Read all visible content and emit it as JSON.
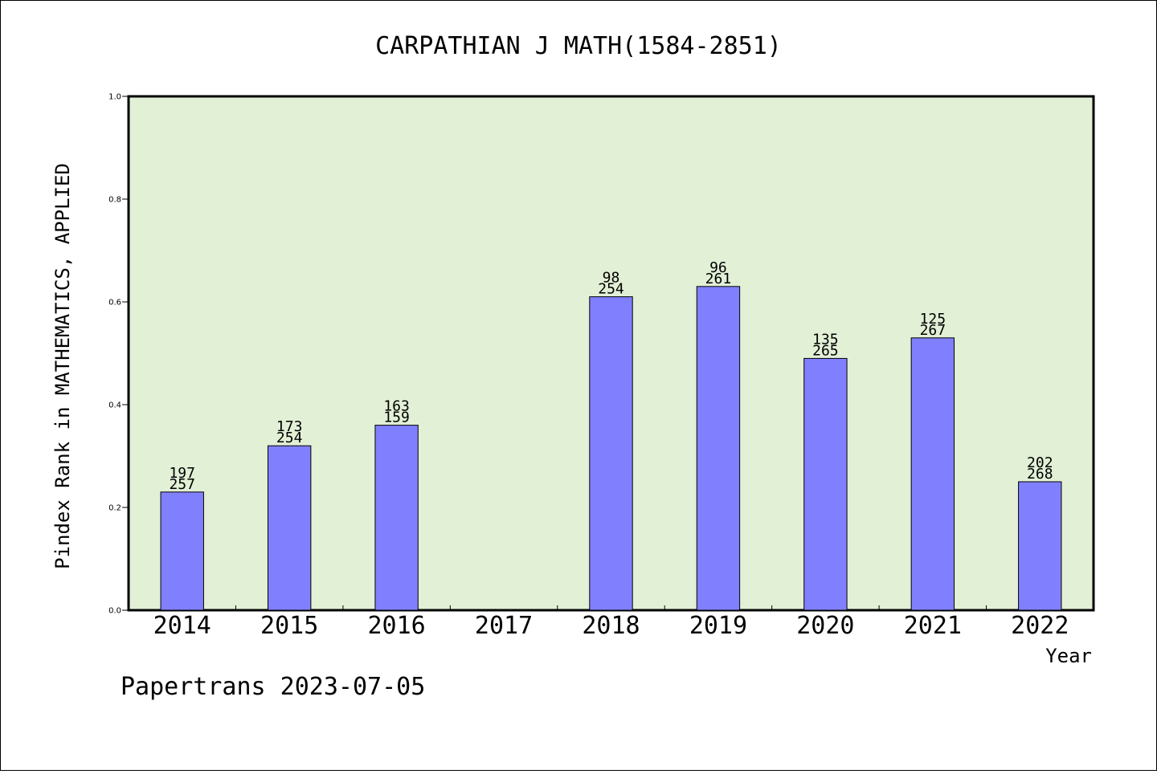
{
  "chart_data": {
    "type": "bar",
    "title": "CARPATHIAN J MATH(1584-2851)",
    "xlabel": "Year",
    "ylabel": "Pindex Rank in MATHEMATICS, APPLIED",
    "ylim": [
      0,
      1.0
    ],
    "yticks": [
      "0.0",
      "0.2",
      "0.4",
      "0.6",
      "0.8",
      "1.0"
    ],
    "categories": [
      "2014",
      "2015",
      "2016",
      "2017",
      "2018",
      "2019",
      "2020",
      "2021",
      "2022"
    ],
    "values": [
      0.23,
      0.32,
      0.36,
      null,
      0.61,
      0.63,
      0.49,
      0.53,
      0.25
    ],
    "label_top": [
      "197",
      "173",
      "163",
      "",
      "98",
      "96",
      "135",
      "125",
      "202"
    ],
    "label_bottom": [
      "257",
      "254",
      "159",
      "",
      "254",
      "261",
      "265",
      "267",
      "268"
    ],
    "grid": false,
    "colors": {
      "plot_background": "#e2f0d6",
      "bar_fill": "#8080ff",
      "bar_stroke": "#000000"
    }
  },
  "footer": "Papertrans 2023-07-05"
}
